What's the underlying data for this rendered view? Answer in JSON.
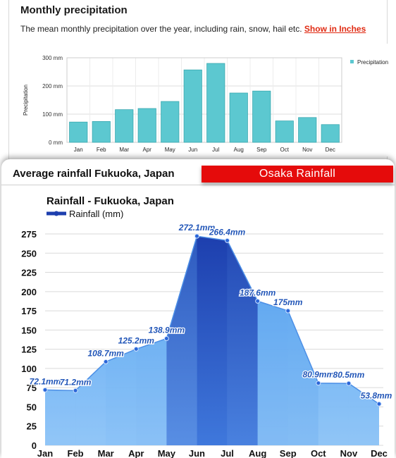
{
  "top": {
    "title": "Monthly precipitation",
    "description": "The mean monthly precipitation over the year, including rain, snow, hail etc.",
    "link_label": "Show in Inches"
  },
  "bottom": {
    "title": "Average rainfall Fukuoka, Japan",
    "banner": "Osaka  Rainfall"
  },
  "colors": {
    "top_bar": "#5cc8d0",
    "area_light": "#64b5f6",
    "area_dark": "#1e47b8",
    "link": "#e02a12",
    "banner": "#e50b0b"
  },
  "chart_data": [
    {
      "type": "bar",
      "title": "",
      "ylabel": "Precipitation",
      "xlabel": "",
      "categories": [
        "Jan",
        "Feb",
        "Mar",
        "Apr",
        "May",
        "Jun",
        "Jul",
        "Aug",
        "Sep",
        "Oct",
        "Nov",
        "Dec"
      ],
      "series": [
        {
          "name": "Precipitation",
          "values": [
            72,
            74,
            116,
            120,
            145,
            257,
            280,
            175,
            182,
            76,
            88,
            63
          ]
        }
      ],
      "ylim": [
        0,
        300
      ],
      "yticks": [
        "0 mm",
        "100 mm",
        "200 mm",
        "300 mm"
      ],
      "grid": true,
      "legend": "top-right"
    },
    {
      "type": "area",
      "title": "Rainfall - Fukuoka, Japan",
      "xlabel": "",
      "ylabel": "",
      "categories": [
        "Jan",
        "Feb",
        "Mar",
        "Apr",
        "May",
        "Jun",
        "Jul",
        "Aug",
        "Sep",
        "Oct",
        "Nov",
        "Dec"
      ],
      "series": [
        {
          "name": "Rainfall (mm)",
          "values": [
            72.1,
            71.2,
            108.7,
            125.2,
            138.9,
            272.1,
            266.4,
            187.6,
            175,
            80.9,
            80.5,
            53.8
          ],
          "labels": [
            "72.1mm",
            "71.2mm",
            "108.7mm",
            "125.2mm",
            "138.9mm",
            "272.1mm",
            "266.4mm",
            "187.6mm",
            "175mm",
            "80.9mm",
            "80.5mm",
            "53.8mm"
          ]
        }
      ],
      "ylim": [
        0,
        275
      ],
      "yticks": [
        "0",
        "25",
        "50",
        "75",
        "100",
        "125",
        "150",
        "175",
        "200",
        "225",
        "250",
        "275"
      ],
      "highlight": [
        "Jun",
        "Jul"
      ],
      "grid": true,
      "legend": "top-left"
    }
  ]
}
